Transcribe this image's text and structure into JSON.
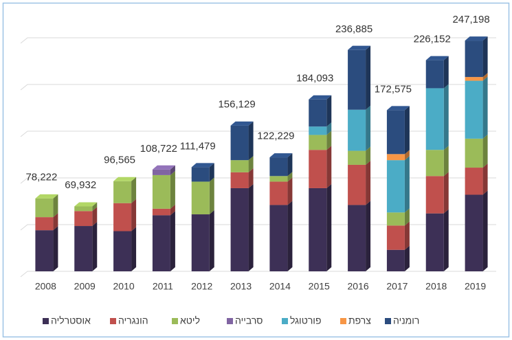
{
  "chart_data": {
    "type": "bar3d_stacked",
    "categories": [
      "2008",
      "2009",
      "2010",
      "2011",
      "2012",
      "2013",
      "2014",
      "2015",
      "2016",
      "2017",
      "2018",
      "2019"
    ],
    "series": [
      {
        "name": "אוסטרליה",
        "color": "#3d3056",
        "values": [
          44000,
          48500,
          43000,
          60000,
          61000,
          89000,
          71000,
          89000,
          71000,
          23000,
          62000,
          82000
        ]
      },
      {
        "name": "הונגריה",
        "color": "#c0504d",
        "values": [
          14000,
          16000,
          30000,
          7000,
          0,
          17000,
          25000,
          41000,
          43000,
          26000,
          40000,
          29000
        ]
      },
      {
        "name": "ליטא",
        "color": "#9bbb59",
        "values": [
          20000,
          5000,
          23500,
          36000,
          35000,
          13000,
          6000,
          16000,
          15000,
          14000,
          28000,
          31000
        ]
      },
      {
        "name": "סרבייה",
        "color": "#8064a2",
        "values": [
          0,
          0,
          0,
          6000,
          0,
          0,
          0,
          0,
          0,
          0,
          0,
          0
        ]
      },
      {
        "name": "פורטוגל",
        "color": "#4bacc6",
        "values": [
          0,
          0,
          0,
          0,
          0,
          0,
          0,
          9000,
          44000,
          56000,
          66000,
          62000
        ]
      },
      {
        "name": "צרפת",
        "color": "#f79646",
        "values": [
          0,
          0,
          0,
          0,
          0,
          0,
          0,
          0,
          0,
          6500,
          0,
          4000
        ]
      },
      {
        "name": "רומניה",
        "color": "#2b4c7e",
        "values": [
          0,
          0,
          0,
          0,
          15500,
          37000,
          20000,
          29000,
          64000,
          47000,
          30000,
          39000
        ]
      }
    ],
    "totals": [
      78222,
      69932,
      96565,
      108722,
      111479,
      156129,
      122229,
      184093,
      236885,
      172575,
      226152,
      247198
    ],
    "total_labels": [
      "78,222",
      "69,932",
      "96,565",
      "108,722",
      "111,479",
      "156,129",
      "122,229",
      "184,093",
      "236,885",
      "172,575",
      "226,152",
      "247,198"
    ],
    "ylim": [
      0,
      250000
    ],
    "yticks": [
      0,
      50000,
      100000,
      150000,
      200000,
      250000
    ],
    "grid": true,
    "legend": "bottom"
  }
}
